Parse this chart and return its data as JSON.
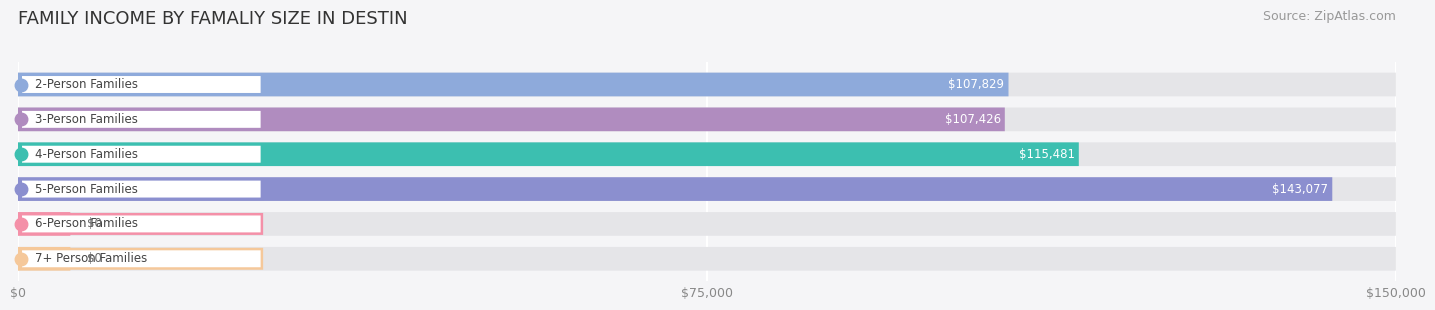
{
  "title": "FAMILY INCOME BY FAMALIY SIZE IN DESTIN",
  "source": "Source: ZipAtlas.com",
  "categories": [
    "2-Person Families",
    "3-Person Families",
    "4-Person Families",
    "5-Person Families",
    "6-Person Families",
    "7+ Person Families"
  ],
  "values": [
    107829,
    107426,
    115481,
    143077,
    0,
    0
  ],
  "bar_colors": [
    "#8eaadb",
    "#b08cbf",
    "#3cbfb0",
    "#8b8fcf",
    "#f490a8",
    "#f5c89a"
  ],
  "label_colors": [
    "#ffffff",
    "#ffffff",
    "#ffffff",
    "#ffffff",
    "#555555",
    "#555555"
  ],
  "xlim": [
    0,
    150000
  ],
  "xticks": [
    0,
    75000,
    150000
  ],
  "xtick_labels": [
    "$0",
    "$75,000",
    "$150,000"
  ],
  "bg_bar_color": "#e5e5e8",
  "title_fontsize": 13,
  "source_fontsize": 9,
  "bar_height": 0.68,
  "figsize": [
    14.06,
    3.05
  ],
  "dpi": 100
}
